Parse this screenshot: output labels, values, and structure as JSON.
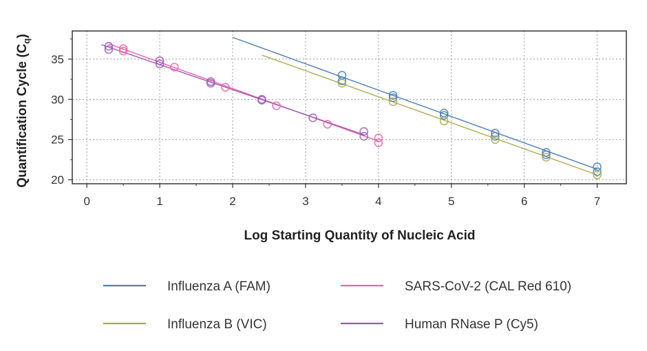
{
  "chart_data": {
    "type": "scatter",
    "title": "",
    "xlabel": "Log Starting Quantity of Nucleic Acid",
    "ylabel_main": "Quantification Cycle (C",
    "ylabel_sub": "q",
    "ylabel_close": ")",
    "xlim": [
      -0.2,
      7.4
    ],
    "ylim": [
      19.5,
      38.5
    ],
    "x_ticks": [
      "0",
      "1",
      "2",
      "3",
      "4",
      "5",
      "6",
      "7"
    ],
    "y_ticks": [
      "20",
      "25",
      "30",
      "35"
    ],
    "grid": true,
    "legend_position": "bottom",
    "series": [
      {
        "name": "Influenza A (FAM)",
        "color": "#4a7fb5",
        "points": [
          [
            3.5,
            33.0
          ],
          [
            3.5,
            32.3
          ],
          [
            4.2,
            30.5
          ],
          [
            4.2,
            30.2
          ],
          [
            4.9,
            28.3
          ],
          [
            4.9,
            28.0
          ],
          [
            5.6,
            25.8
          ],
          [
            5.6,
            25.4
          ],
          [
            6.3,
            23.4
          ],
          [
            6.3,
            23.1
          ],
          [
            7.0,
            21.6
          ],
          [
            7.0,
            21.0
          ]
        ],
        "fit": [
          [
            2.0,
            37.7
          ],
          [
            7.0,
            21.3
          ]
        ]
      },
      {
        "name": "Influenza B (VIC)",
        "color": "#a9ad50",
        "points": [
          [
            3.5,
            32.0
          ],
          [
            4.2,
            29.7
          ],
          [
            4.9,
            27.3
          ],
          [
            5.6,
            25.0
          ],
          [
            6.3,
            22.8
          ],
          [
            7.0,
            20.6
          ]
        ],
        "fit": [
          [
            2.4,
            35.5
          ],
          [
            7.0,
            20.6
          ]
        ]
      },
      {
        "name": "SARS-CoV-2 (CAL Red 610)",
        "color": "#f062a8",
        "points": [
          [
            0.5,
            36.3
          ],
          [
            0.5,
            36.0
          ],
          [
            1.2,
            34.0
          ],
          [
            1.9,
            31.5
          ],
          [
            2.6,
            29.2
          ],
          [
            3.3,
            26.9
          ],
          [
            4.0,
            25.2
          ],
          [
            4.0,
            24.6
          ]
        ],
        "fit": [
          [
            0.3,
            36.9
          ],
          [
            4.0,
            24.8
          ]
        ]
      },
      {
        "name": "Human RNase P (Cy5)",
        "color": "#9b59b6",
        "points": [
          [
            0.3,
            36.6
          ],
          [
            0.3,
            36.2
          ],
          [
            1.0,
            34.8
          ],
          [
            1.0,
            34.4
          ],
          [
            1.7,
            32.2
          ],
          [
            1.7,
            32.0
          ],
          [
            2.4,
            30.0
          ],
          [
            2.4,
            29.9
          ],
          [
            3.1,
            27.7
          ],
          [
            3.8,
            26.0
          ],
          [
            3.8,
            25.4
          ]
        ],
        "fit": [
          [
            0.2,
            36.8
          ],
          [
            3.8,
            25.6
          ]
        ]
      }
    ]
  }
}
